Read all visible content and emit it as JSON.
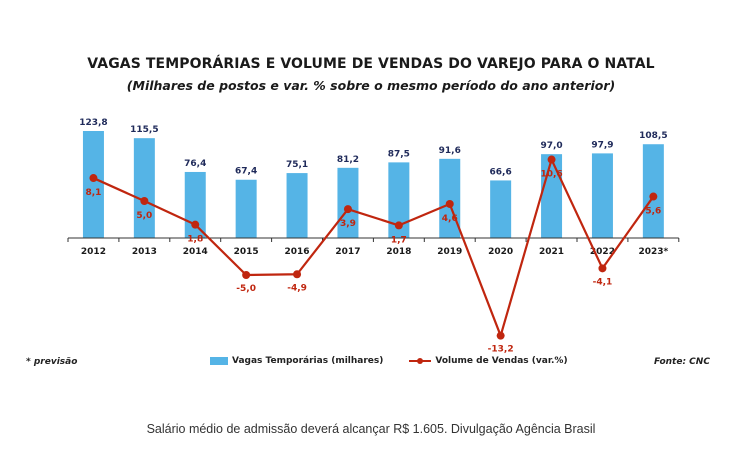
{
  "chart_data": {
    "type": "bar+line",
    "title": "VAGAS TEMPORÁRIAS E VOLUME DE VENDAS DO VAREJO PARA O NATAL",
    "subtitle": "(Milhares de postos e var. % sobre o mesmo período do ano anterior)",
    "categories": [
      "2012",
      "2013",
      "2014",
      "2015",
      "2016",
      "2017",
      "2018",
      "2019",
      "2020",
      "2021",
      "2022",
      "2023*"
    ],
    "series": [
      {
        "name": "Vagas Temporárias (milhares)",
        "kind": "bar",
        "color": "#55b4e6",
        "values": [
          123.8,
          115.5,
          76.4,
          67.4,
          75.1,
          81.2,
          87.5,
          91.6,
          66.6,
          97.0,
          97.9,
          108.5
        ],
        "labels": [
          "123,8",
          "115,5",
          "76,4",
          "67,4",
          "75,1",
          "81,2",
          "87,5",
          "91,6",
          "66,6",
          "97,0",
          "97,9",
          "108,5"
        ]
      },
      {
        "name": "Volume de Vendas (var.%)",
        "kind": "line",
        "color": "#c0260f",
        "values": [
          8.1,
          5.0,
          1.8,
          -5.0,
          -4.9,
          3.9,
          1.7,
          4.6,
          -13.2,
          10.6,
          -4.1,
          5.6
        ],
        "labels": [
          "8,1",
          "5,0",
          "1,8",
          "-5,0",
          "-4,9",
          "3,9",
          "1,7",
          "4,6",
          "-13,2",
          "10,6",
          "-4,1",
          "5,6"
        ]
      }
    ],
    "note": "* previsão",
    "source": "Fonte: CNC",
    "legend_position": "bottom"
  },
  "caption": "Salário médio de admissão deverá alcançar R$ 1.605. Divulgação Agência Brasil"
}
